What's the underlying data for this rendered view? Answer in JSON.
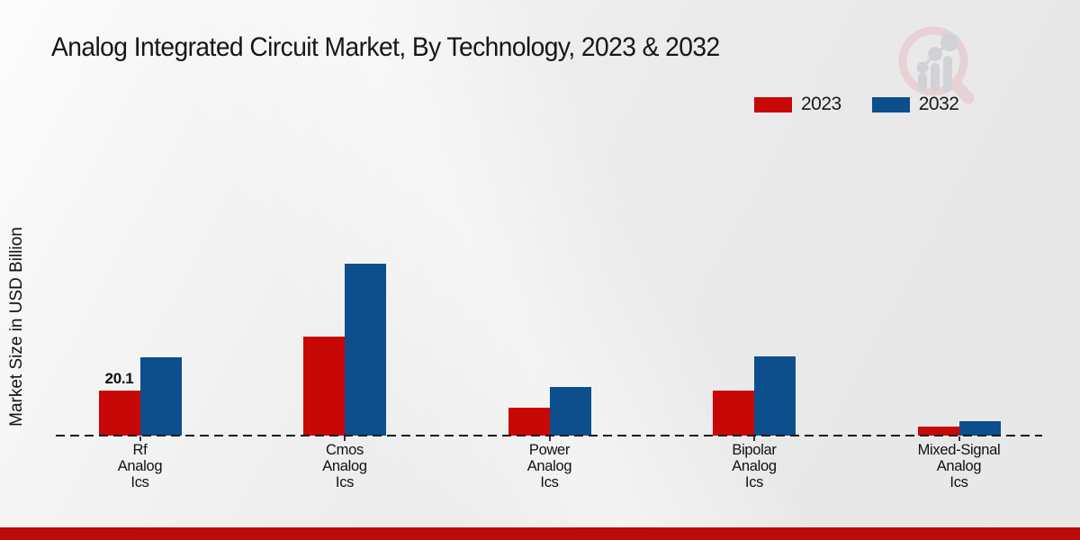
{
  "title": "Analog Integrated Circuit Market, By Technology, 2023 & 2032",
  "ylabel": "Market Size in USD Billion",
  "colors": {
    "series_2023": "#c80707",
    "series_2032": "#0d4e8d",
    "footer_bar": "#bb0c0c",
    "baseline": "#1c1c1c",
    "watermark_pink": "#e6cdd2",
    "watermark_gray": "#cdced3"
  },
  "legend": [
    {
      "label": "2023",
      "color": "#c80707"
    },
    {
      "label": "2032",
      "color": "#0d4e8d"
    }
  ],
  "chart_data": {
    "type": "bar",
    "title": "Analog Integrated Circuit Market, By Technology, 2023 & 2032",
    "xlabel": "",
    "ylabel": "Market Size in USD Billion",
    "ylim": [
      0,
      90
    ],
    "grid": false,
    "legend_position": "top-right",
    "baseline_style": "dashed",
    "categories": [
      "Rf\nAnalog\nIcs",
      "Cmos\nAnalog\nIcs",
      "Power\nAnalog\nIcs",
      "Bipolar\nAnalog\nIcs",
      "Mixed-Signal\nAnalog\nIcs"
    ],
    "series": [
      {
        "name": "2023",
        "color": "#c80707",
        "values": [
          20.1,
          44.7,
          12.6,
          20.3,
          4.1
        ]
      },
      {
        "name": "2032",
        "color": "#0d4e8d",
        "values": [
          35.5,
          77.6,
          22.1,
          35.6,
          6.5
        ]
      }
    ],
    "annotations": [
      {
        "series_index": 0,
        "category_index": 0,
        "text": "20.1"
      }
    ]
  }
}
